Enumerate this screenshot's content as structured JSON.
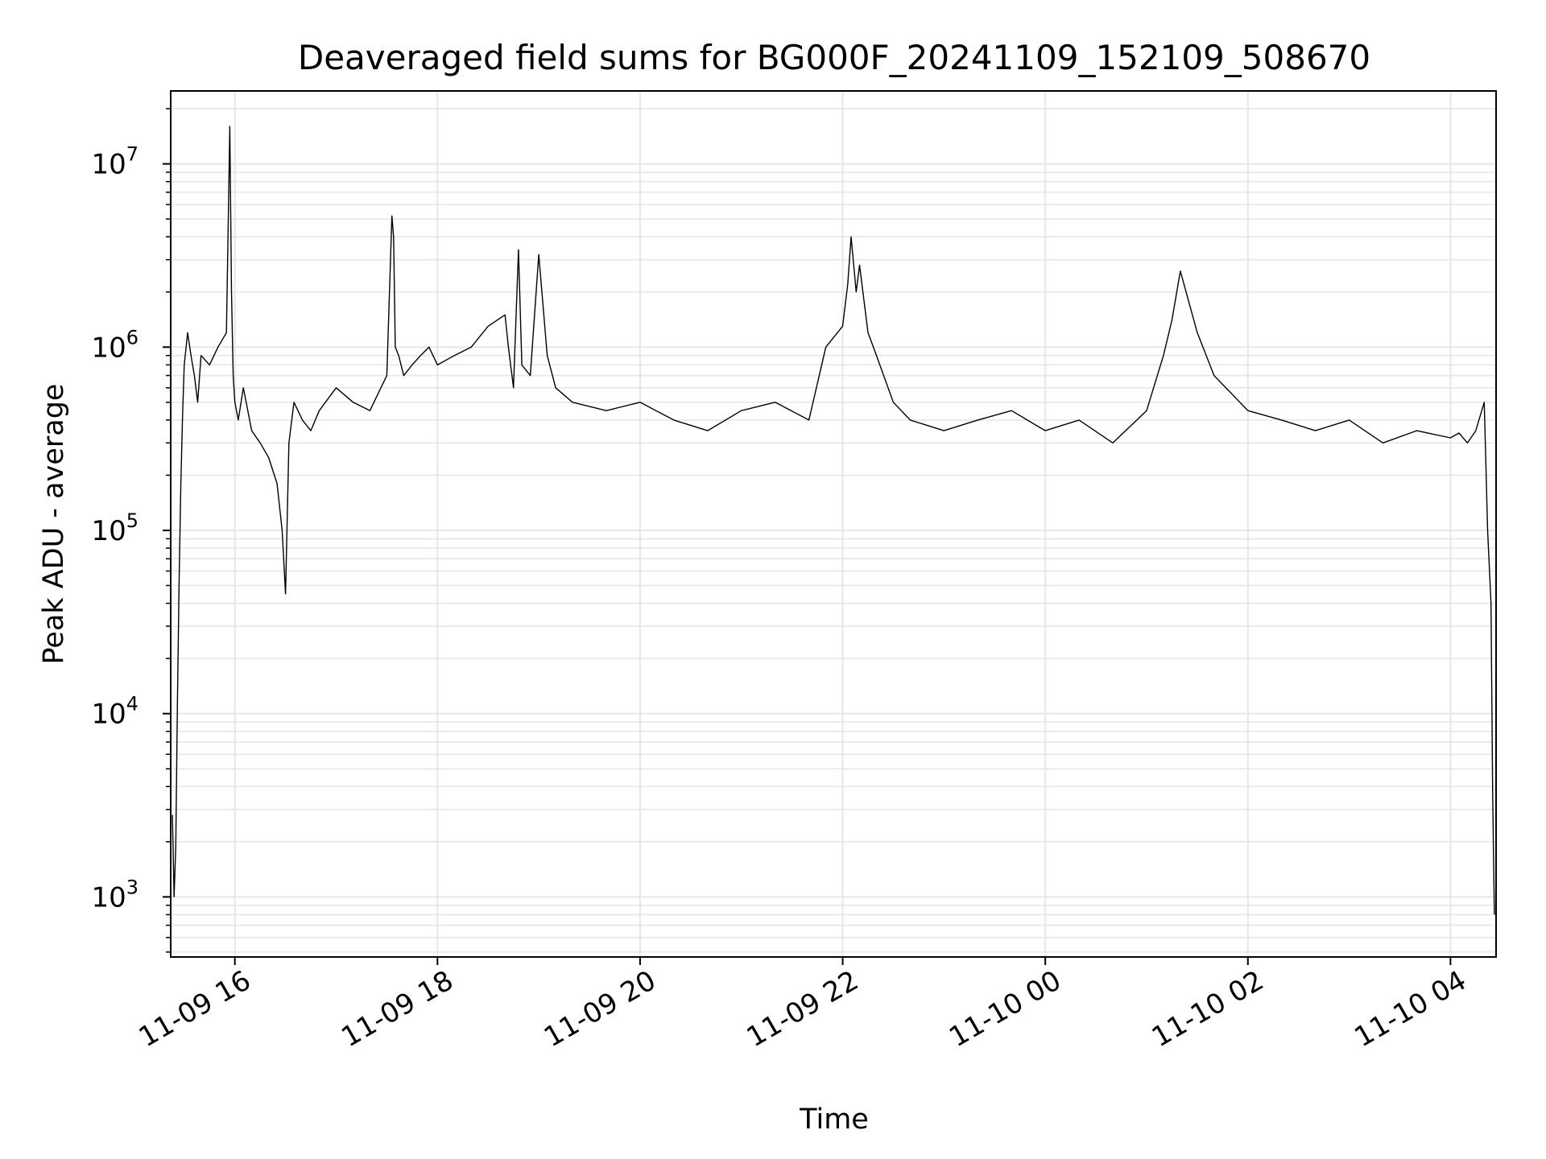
{
  "chart_data": {
    "type": "line",
    "title": "Deaveraged field sums for BG000F_20241109_152109_508670",
    "xlabel": "Time",
    "ylabel": "Peak ADU - average",
    "yscale": "log",
    "ylim": [
      470,
      25000000
    ],
    "xlim": [
      "2024-11-09 15:22",
      "2024-11-10 04:27"
    ],
    "grid": true,
    "line_color": "#000000",
    "grid_color": "#e6e6e6",
    "x_ticks": [
      {
        "value": "2024-11-09 16:00",
        "label": "11-09 16"
      },
      {
        "value": "2024-11-09 18:00",
        "label": "11-09 18"
      },
      {
        "value": "2024-11-09 20:00",
        "label": "11-09 20"
      },
      {
        "value": "2024-11-09 22:00",
        "label": "11-09 22"
      },
      {
        "value": "2024-11-10 00:00",
        "label": "11-10 00"
      },
      {
        "value": "2024-11-10 02:00",
        "label": "11-10 02"
      },
      {
        "value": "2024-11-10 04:00",
        "label": "11-10 04"
      }
    ],
    "y_ticks": [
      {
        "value": 1000,
        "base": "10",
        "exp": "3"
      },
      {
        "value": 10000,
        "base": "10",
        "exp": "4"
      },
      {
        "value": 100000,
        "base": "10",
        "exp": "5"
      },
      {
        "value": 1000000,
        "base": "10",
        "exp": "6"
      },
      {
        "value": 10000000,
        "base": "10",
        "exp": "7"
      }
    ],
    "series": [
      {
        "x": [
          "2024-11-09 15:23",
          "2024-11-09 15:24",
          "2024-11-09 15:25",
          "2024-11-09 15:26",
          "2024-11-09 15:27",
          "2024-11-09 15:28",
          "2024-11-09 15:29",
          "2024-11-09 15:30",
          "2024-11-09 15:32",
          "2024-11-09 15:34",
          "2024-11-09 15:36",
          "2024-11-09 15:38",
          "2024-11-09 15:40",
          "2024-11-09 15:45",
          "2024-11-09 15:50",
          "2024-11-09 15:55",
          "2024-11-09 15:57",
          "2024-11-09 15:58",
          "2024-11-09 15:59",
          "2024-11-09 16:00",
          "2024-11-09 16:02",
          "2024-11-09 16:05",
          "2024-11-09 16:10",
          "2024-11-09 16:15",
          "2024-11-09 16:20",
          "2024-11-09 16:25",
          "2024-11-09 16:28",
          "2024-11-09 16:30",
          "2024-11-09 16:32",
          "2024-11-09 16:35",
          "2024-11-09 16:40",
          "2024-11-09 16:45",
          "2024-11-09 16:50",
          "2024-11-09 17:00",
          "2024-11-09 17:10",
          "2024-11-09 17:20",
          "2024-11-09 17:30",
          "2024-11-09 17:33",
          "2024-11-09 17:34",
          "2024-11-09 17:35",
          "2024-11-09 17:37",
          "2024-11-09 17:40",
          "2024-11-09 17:45",
          "2024-11-09 17:50",
          "2024-11-09 17:55",
          "2024-11-09 18:00",
          "2024-11-09 18:10",
          "2024-11-09 18:20",
          "2024-11-09 18:30",
          "2024-11-09 18:40",
          "2024-11-09 18:42",
          "2024-11-09 18:45",
          "2024-11-09 18:48",
          "2024-11-09 18:50",
          "2024-11-09 18:55",
          "2024-11-09 19:00",
          "2024-11-09 19:05",
          "2024-11-09 19:10",
          "2024-11-09 19:20",
          "2024-11-09 19:40",
          "2024-11-09 20:00",
          "2024-11-09 20:20",
          "2024-11-09 20:40",
          "2024-11-09 21:00",
          "2024-11-09 21:20",
          "2024-11-09 21:40",
          "2024-11-09 21:50",
          "2024-11-09 22:00",
          "2024-11-09 22:03",
          "2024-11-09 22:05",
          "2024-11-09 22:08",
          "2024-11-09 22:10",
          "2024-11-09 22:15",
          "2024-11-09 22:20",
          "2024-11-09 22:30",
          "2024-11-09 22:40",
          "2024-11-09 23:00",
          "2024-11-09 23:20",
          "2024-11-09 23:40",
          "2024-11-10 00:00",
          "2024-11-10 00:20",
          "2024-11-10 00:40",
          "2024-11-10 01:00",
          "2024-11-10 01:10",
          "2024-11-10 01:15",
          "2024-11-10 01:20",
          "2024-11-10 01:30",
          "2024-11-10 01:40",
          "2024-11-10 02:00",
          "2024-11-10 02:20",
          "2024-11-10 02:40",
          "2024-11-10 03:00",
          "2024-11-10 03:20",
          "2024-11-10 03:40",
          "2024-11-10 04:00",
          "2024-11-10 04:05",
          "2024-11-10 04:10",
          "2024-11-10 04:15",
          "2024-11-10 04:20",
          "2024-11-10 04:22",
          "2024-11-10 04:24",
          "2024-11-10 04:25",
          "2024-11-10 04:26"
        ],
        "y": [
          2800,
          1000,
          1900,
          12000,
          55000,
          180000,
          420000,
          800000,
          1200000,
          900000,
          700000,
          500000,
          900000,
          800000,
          1000000,
          1200000,
          16000000,
          2000000,
          700000,
          500000,
          400000,
          600000,
          350000,
          300000,
          250000,
          180000,
          100000,
          45000,
          300000,
          500000,
          400000,
          350000,
          450000,
          600000,
          500000,
          450000,
          700000,
          5200000,
          4000000,
          1000000,
          900000,
          700000,
          800000,
          900000,
          1000000,
          800000,
          900000,
          1000000,
          1300000,
          1500000,
          1000000,
          600000,
          3400000,
          800000,
          700000,
          3200000,
          900000,
          600000,
          500000,
          450000,
          500000,
          400000,
          350000,
          450000,
          500000,
          400000,
          1000000,
          1300000,
          2200000,
          4000000,
          2000000,
          2800000,
          1200000,
          900000,
          500000,
          400000,
          350000,
          400000,
          450000,
          350000,
          400000,
          300000,
          450000,
          900000,
          1400000,
          2600000,
          1200000,
          700000,
          450000,
          400000,
          350000,
          400000,
          300000,
          350000,
          320000,
          340000,
          300000,
          350000,
          500000,
          100000,
          40000,
          3500,
          800
        ]
      }
    ]
  }
}
